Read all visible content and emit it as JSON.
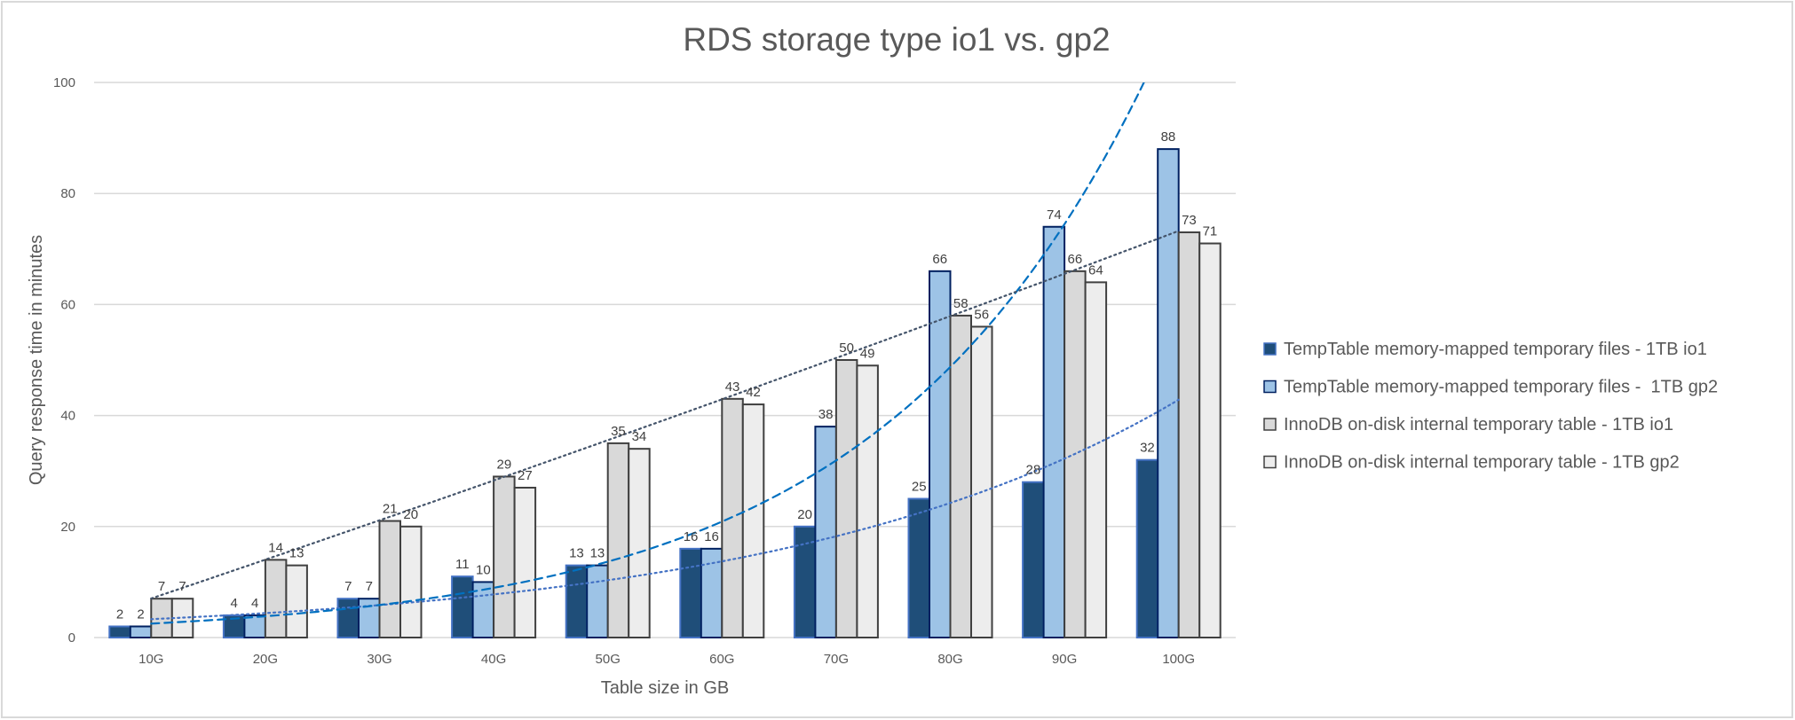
{
  "chart_data": {
    "type": "bar",
    "title": "RDS storage type io1 vs. gp2",
    "xlabel": "Table size in GB",
    "ylabel": "Query response time in minutes",
    "ylim": [
      0,
      100
    ],
    "yticks": [
      0,
      20,
      40,
      60,
      80,
      100
    ],
    "grid": true,
    "legend_position": "right",
    "categories": [
      "10G",
      "20G",
      "30G",
      "40G",
      "50G",
      "60G",
      "70G",
      "80G",
      "90G",
      "100G"
    ],
    "series": [
      {
        "name": "TempTable memory-mapped temporary files - 1TB io1",
        "values": [
          2,
          4,
          7,
          11,
          13,
          16,
          20,
          25,
          28,
          32
        ],
        "fill": "#1F4E79",
        "stroke": "#4472C4"
      },
      {
        "name": "TempTable memory-mapped temporary files -  1TB gp2",
        "values": [
          2,
          4,
          7,
          10,
          13,
          16,
          38,
          66,
          74,
          88
        ],
        "fill": "#9DC3E6",
        "stroke": "#002060"
      },
      {
        "name": "InnoDB on-disk internal temporary table - 1TB io1",
        "values": [
          7,
          14,
          21,
          29,
          35,
          43,
          50,
          58,
          66,
          73
        ],
        "fill": "#D9D9D9",
        "stroke": "#404040"
      },
      {
        "name": "InnoDB on-disk internal temporary table - 1TB gp2",
        "values": [
          7,
          13,
          20,
          27,
          34,
          42,
          49,
          56,
          64,
          71
        ],
        "fill": "#EDEDED",
        "stroke": "#404040"
      }
    ],
    "trendlines": [
      {
        "series": "TempTable memory-mapped temporary files - 1TB io1",
        "kind": "exponential",
        "style": "dotted",
        "color": "#4472C4",
        "start_value": 3.1,
        "end_value": 42.5
      },
      {
        "series": "TempTable memory-mapped temporary files -  1TB gp2",
        "kind": "exponential",
        "style": "dashed",
        "color": "#0070C0",
        "start_value": 2.3,
        "value_at_70G": 31.8
      },
      {
        "series": "InnoDB on-disk internal temporary table - 1TB io1",
        "kind": "logarithmic-like",
        "style": "dotted",
        "color": "#44546A",
        "start_value": 7,
        "end_value": 72.5
      }
    ]
  }
}
